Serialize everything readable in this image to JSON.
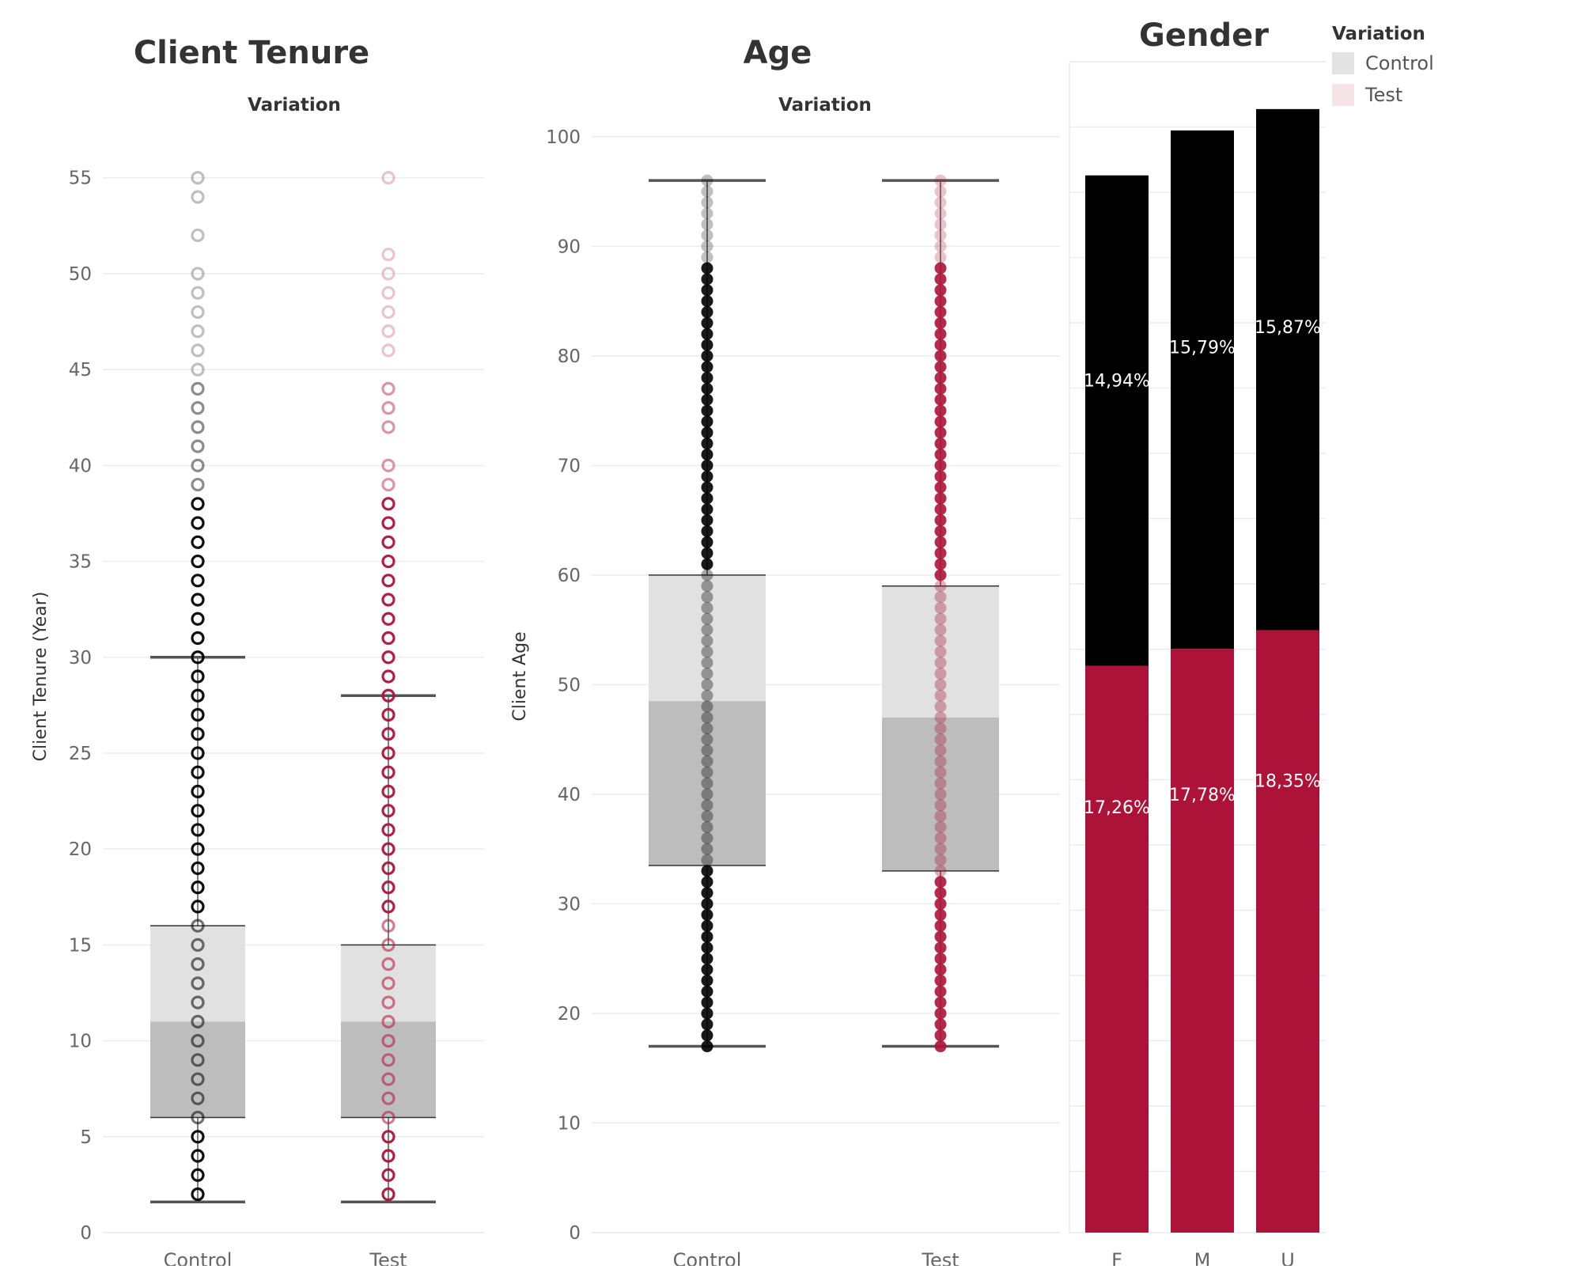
{
  "colors": {
    "control": "#000000",
    "test": "#ad1339",
    "control_legend": "#e3e3e3",
    "test_legend": "#f6e3e8",
    "box_upper": "#e1e1e1",
    "box_lower": "#bdbdbd",
    "whisker": "#555555",
    "gridline": "#ececec",
    "axis_text": "#666666",
    "title_text": "#333333",
    "bar_label_text": "#ffffff"
  },
  "legend": {
    "title": "Variation",
    "items": [
      {
        "label": "Control",
        "color_key": "control_legend"
      },
      {
        "label": "Test",
        "color_key": "test_legend"
      }
    ]
  },
  "chart_data": [
    {
      "type": "box",
      "title": "Client Tenure",
      "subtitle": "Variation",
      "xlabel": "",
      "ylabel": "Client Tenure (Year)",
      "ylim": [
        0,
        58
      ],
      "yticks": [
        0,
        5,
        10,
        15,
        20,
        25,
        30,
        35,
        40,
        45,
        50,
        55
      ],
      "categories": [
        "Control",
        "Test"
      ],
      "grid": true,
      "boxes": [
        {
          "name": "Control",
          "whisker_low": 1.6,
          "q1": 6,
          "median": 11,
          "q3": 16,
          "whisker_high": 30,
          "points": [
            2,
            3,
            4,
            5,
            6,
            7,
            8,
            9,
            10,
            11,
            12,
            13,
            14,
            15,
            16,
            17,
            18,
            19,
            20,
            21,
            22,
            23,
            24,
            25,
            26,
            27,
            28,
            29,
            30,
            31,
            32,
            33,
            34,
            35,
            36,
            37,
            38,
            39,
            40,
            41,
            42,
            43,
            44,
            45,
            46,
            47,
            48,
            49,
            50,
            52,
            54,
            55
          ]
        },
        {
          "name": "Test",
          "whisker_low": 1.6,
          "q1": 6,
          "median": 11,
          "q3": 15,
          "whisker_high": 28,
          "points": [
            2,
            3,
            4,
            5,
            6,
            7,
            8,
            9,
            10,
            11,
            12,
            13,
            14,
            15,
            16,
            17,
            18,
            19,
            20,
            21,
            22,
            23,
            24,
            25,
            26,
            27,
            28,
            29,
            30,
            31,
            32,
            33,
            34,
            35,
            36,
            37,
            38,
            39,
            40,
            42,
            43,
            44,
            46,
            47,
            48,
            49,
            50,
            51,
            55
          ]
        }
      ]
    },
    {
      "type": "box",
      "title": "Age",
      "subtitle": "Variation",
      "xlabel": "",
      "ylabel": "Client Age",
      "ylim": [
        0,
        100
      ],
      "yticks": [
        0,
        10,
        20,
        30,
        40,
        50,
        60,
        70,
        80,
        90,
        100
      ],
      "categories": [
        "Control",
        "Test"
      ],
      "grid": true,
      "boxes": [
        {
          "name": "Control",
          "whisker_low": 17,
          "q1": 33.5,
          "median": 48.5,
          "q3": 60,
          "whisker_high": 96,
          "points_range": [
            17,
            96
          ]
        },
        {
          "name": "Test",
          "whisker_low": 17,
          "q1": 33,
          "median": 47,
          "q3": 59,
          "whisker_high": 96,
          "points_range": [
            17,
            96
          ]
        }
      ]
    },
    {
      "type": "bar",
      "stacked": true,
      "title": "Gender",
      "xlabel": "",
      "ylabel": "",
      "categories": [
        "F",
        "M",
        "U"
      ],
      "grid": true,
      "series": [
        {
          "name": "Test",
          "values": [
            17.26,
            17.78,
            18.35
          ],
          "labels": [
            "17,26%",
            "17,78%",
            "18,35%"
          ]
        },
        {
          "name": "Control",
          "values": [
            14.94,
            15.79,
            15.87
          ],
          "labels": [
            "14,94%",
            "15,79%",
            "15,87%"
          ]
        }
      ]
    }
  ]
}
